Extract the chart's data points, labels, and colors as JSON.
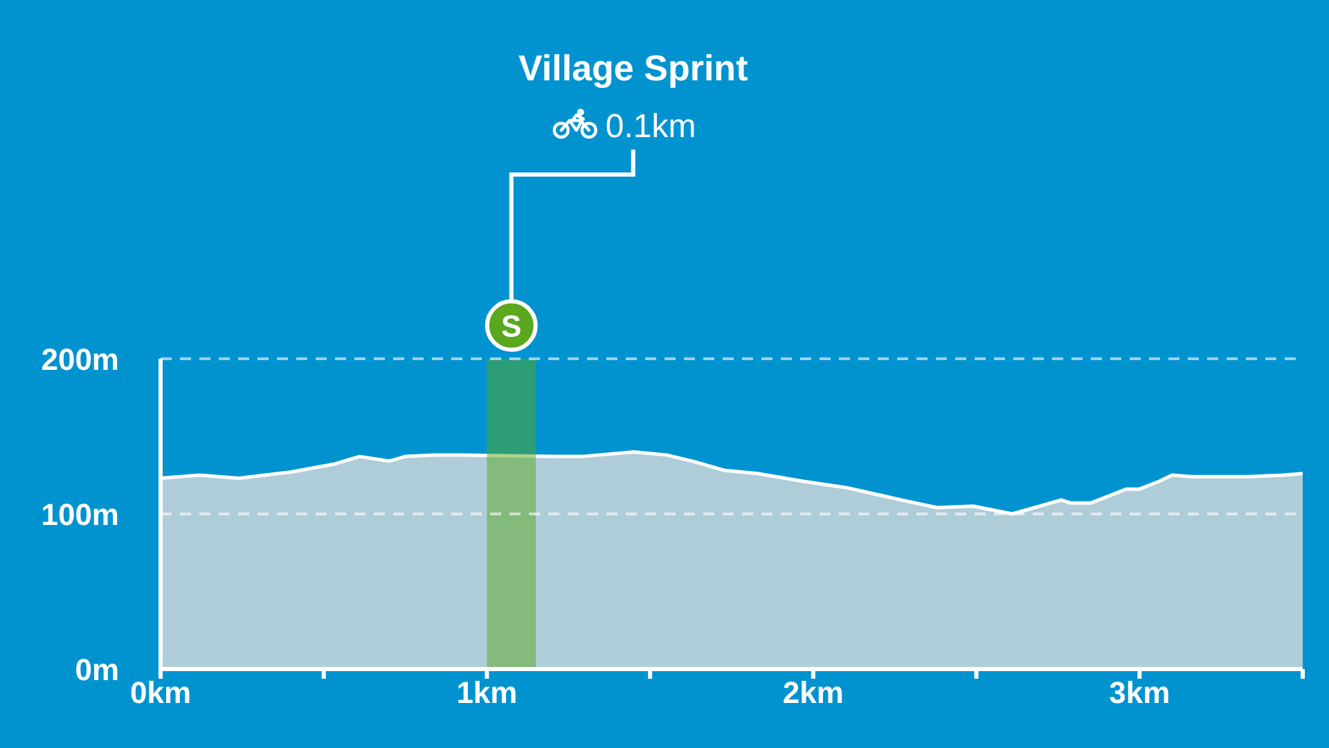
{
  "chart_data": {
    "type": "area",
    "title": "Village Sprint",
    "subtitle": "0.1km",
    "x": [
      0.0,
      0.12,
      0.24,
      0.4,
      0.53,
      0.61,
      0.7,
      0.75,
      0.84,
      0.92,
      1.21,
      1.29,
      1.45,
      1.55,
      1.63,
      1.73,
      1.83,
      1.97,
      2.1,
      2.27,
      2.38,
      2.49,
      2.61,
      2.71,
      2.76,
      2.79,
      2.85,
      2.96,
      3.0,
      3.06,
      3.1,
      3.16,
      3.33,
      3.44,
      3.5
    ],
    "values": [
      123,
      125,
      123,
      127,
      132,
      137,
      134,
      137,
      138,
      138,
      137,
      137,
      140,
      138,
      134,
      128,
      126,
      121,
      117,
      109,
      104,
      105,
      100,
      106,
      109,
      107,
      107,
      116,
      116,
      121,
      125,
      124,
      124,
      125,
      126
    ],
    "color": "#afcdd8",
    "xlim": [
      0,
      3.5
    ],
    "xticks": [
      {
        "value": 0,
        "label": "0km"
      },
      {
        "value": 0.5,
        "label": null
      },
      {
        "value": 1,
        "label": "1km"
      },
      {
        "value": 1.5,
        "label": null
      },
      {
        "value": 2,
        "label": "2km"
      },
      {
        "value": 2.5,
        "label": null
      },
      {
        "value": 3,
        "label": "3km"
      },
      {
        "value": 3.5,
        "label": null
      }
    ],
    "ylim": [
      0,
      200
    ],
    "yticks": [
      {
        "value": 0,
        "label": "0m"
      },
      {
        "value": 100,
        "label": "100m"
      },
      {
        "value": 200,
        "label": "200m"
      }
    ],
    "grid": "y",
    "bands": [
      {
        "axis": "x",
        "from": 1.0,
        "to": 1.15,
        "color": "#5aa81e"
      }
    ],
    "annotations": [
      "S"
    ]
  }
}
